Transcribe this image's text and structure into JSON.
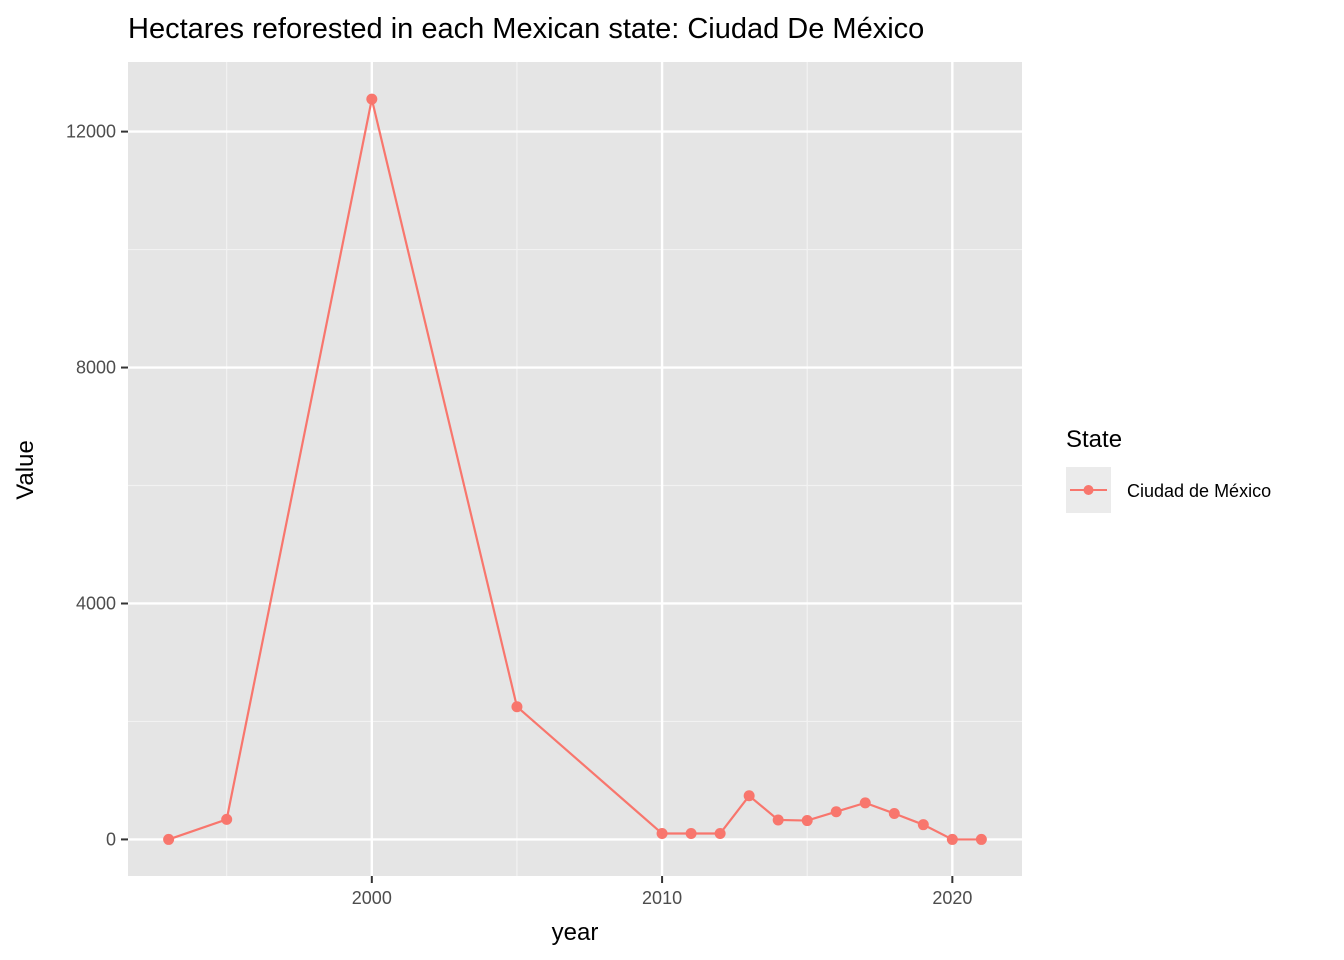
{
  "chart_data": {
    "type": "line",
    "title": "Hectares reforested in each Mexican state: Ciudad De México",
    "xlabel": "year",
    "ylabel": "Value",
    "xlim": [
      1991.6,
      2022.4
    ],
    "ylim": [
      -620,
      13180
    ],
    "x_ticks": [
      2000,
      2010,
      2020
    ],
    "y_ticks": [
      0,
      4000,
      8000,
      12000
    ],
    "x_minor": [
      1995,
      2005,
      2015
    ],
    "y_minor": [
      2000,
      6000,
      10000
    ],
    "grid": true,
    "legend": {
      "title": "State",
      "position": "right"
    },
    "series": [
      {
        "name": "Ciudad de México",
        "color": "#F8766D",
        "x": [
          1993,
          1995,
          2000,
          2005,
          2010,
          2011,
          2012,
          2013,
          2014,
          2015,
          2016,
          2017,
          2018,
          2019,
          2020,
          2021
        ],
        "values": [
          0,
          340,
          12550,
          2250,
          100,
          100,
          100,
          740,
          330,
          320,
          470,
          620,
          440,
          250,
          0,
          0
        ]
      }
    ]
  }
}
